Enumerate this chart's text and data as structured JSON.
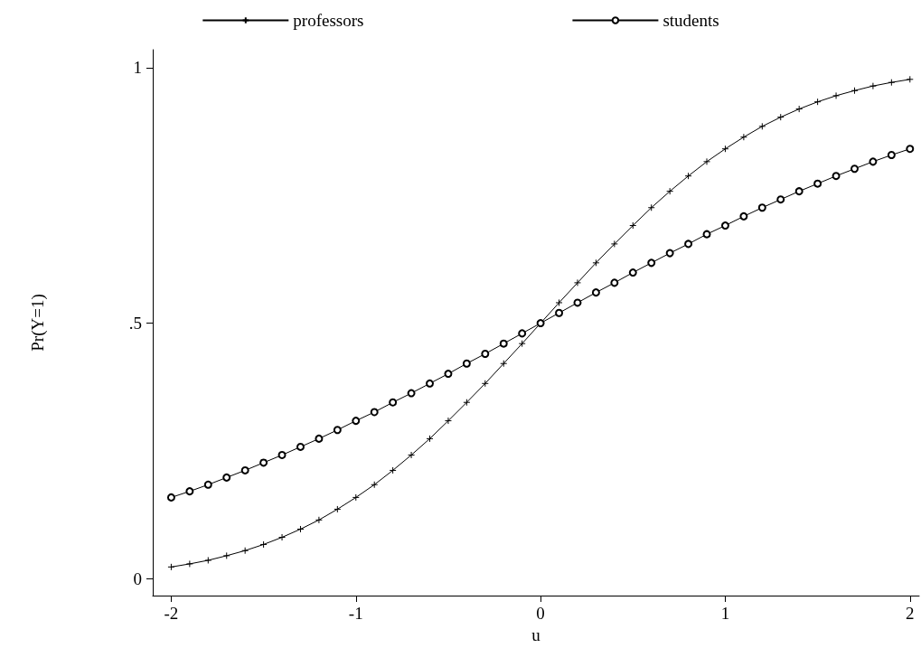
{
  "chart_data": {
    "type": "line",
    "xlabel": "u",
    "ylabel": "Pr(Y=1)",
    "x": [
      -2,
      -1.9,
      -1.8,
      -1.7,
      -1.6,
      -1.5,
      -1.4,
      -1.3,
      -1.2,
      -1.1,
      -1,
      -0.9,
      -0.8,
      -0.7,
      -0.6,
      -0.5,
      -0.4,
      -0.3,
      -0.2,
      -0.1,
      0,
      0.1,
      0.2,
      0.3,
      0.4,
      0.5,
      0.6,
      0.7,
      0.8,
      0.9,
      1,
      1.1,
      1.2,
      1.3,
      1.4,
      1.5,
      1.6,
      1.7,
      1.8,
      1.9,
      2
    ],
    "series": [
      {
        "name": "professors",
        "color": "#000000",
        "marker": "cross",
        "values": [
          0.023,
          0.029,
          0.036,
          0.045,
          0.055,
          0.067,
          0.081,
          0.097,
          0.115,
          0.136,
          0.159,
          0.184,
          0.212,
          0.242,
          0.274,
          0.309,
          0.345,
          0.382,
          0.421,
          0.46,
          0.5,
          0.54,
          0.579,
          0.618,
          0.655,
          0.691,
          0.726,
          0.758,
          0.788,
          0.816,
          0.841,
          0.864,
          0.885,
          0.903,
          0.919,
          0.933,
          0.945,
          0.955,
          0.964,
          0.971,
          0.977
        ]
      },
      {
        "name": "students",
        "color": "#000000",
        "marker": "circle",
        "values": [
          0.159,
          0.171,
          0.184,
          0.198,
          0.212,
          0.227,
          0.242,
          0.258,
          0.274,
          0.291,
          0.309,
          0.326,
          0.345,
          0.363,
          0.382,
          0.401,
          0.421,
          0.44,
          0.46,
          0.48,
          0.5,
          0.52,
          0.54,
          0.56,
          0.579,
          0.599,
          0.618,
          0.637,
          0.655,
          0.674,
          0.691,
          0.709,
          0.726,
          0.742,
          0.758,
          0.773,
          0.788,
          0.802,
          0.816,
          0.829,
          0.841
        ]
      }
    ],
    "xlim": [
      -2.1,
      2.05
    ],
    "xticks": [
      -2,
      -1,
      0,
      1,
      2
    ],
    "ylim": [
      -0.033,
      1.035
    ],
    "yticks": [
      0,
      {
        "value": 0.5,
        "label": ".5"
      },
      1
    ],
    "grid": false,
    "legend": "top",
    "line_style": "solid"
  }
}
